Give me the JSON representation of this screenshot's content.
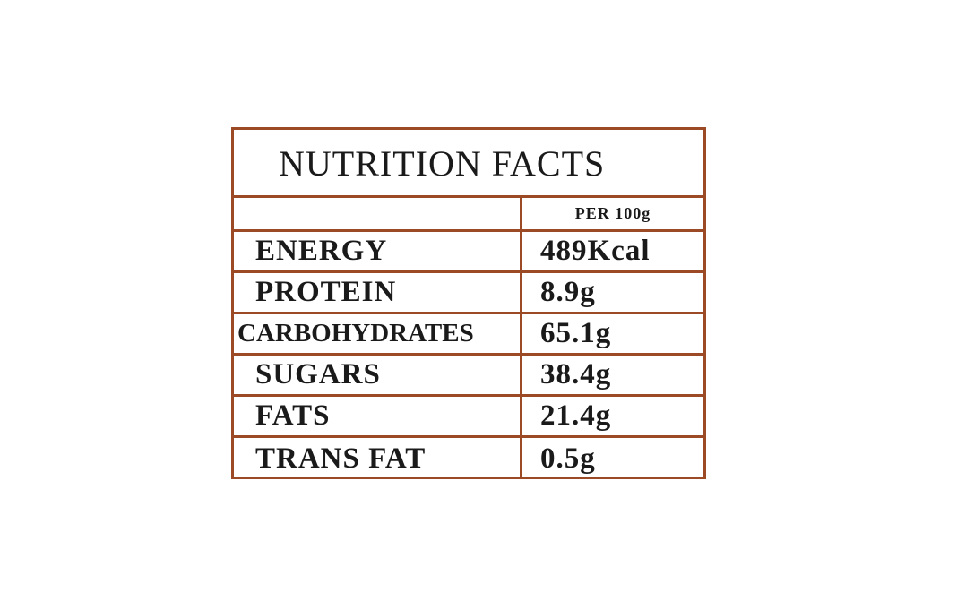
{
  "table": {
    "title": "NUTRITION FACTS",
    "column_header": "PER 100g",
    "rows": [
      [
        "ENERGY",
        "489Kcal"
      ],
      [
        "PROTEIN",
        "8.9g"
      ],
      [
        "CARBOHYDRATES",
        "65.1g"
      ],
      [
        "SUGARS",
        "38.4g"
      ],
      [
        "FATS",
        "21.4g"
      ],
      [
        "TRANS FAT",
        "0.5g"
      ]
    ]
  }
}
